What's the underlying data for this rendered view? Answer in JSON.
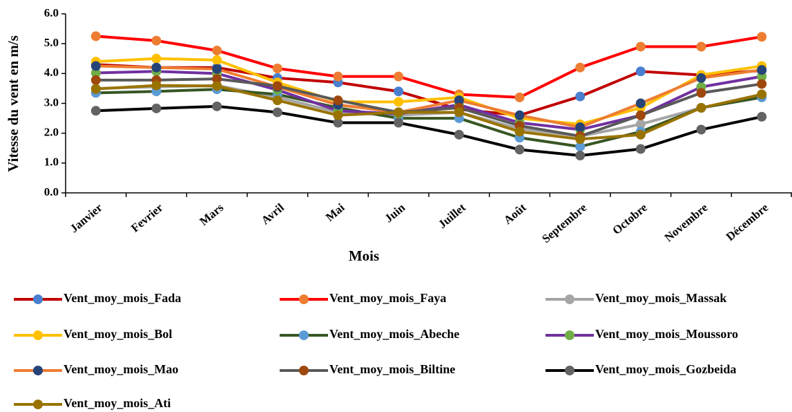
{
  "chart_data": {
    "type": "line",
    "x_label": "Mois",
    "y_label": "Vitesse du vent en m/s",
    "categories": [
      "Janvier",
      "Fevrier",
      "Mars",
      "Avril",
      "Mai",
      "Juin",
      "Juillet",
      "Août",
      "Septembre",
      "Octobre",
      "Novembre",
      "Décembre"
    ],
    "ylim": [
      0,
      6
    ],
    "yticks": [
      {
        "value": 0,
        "label": "0.0"
      },
      {
        "value": 1,
        "label": "1.0"
      },
      {
        "value": 2,
        "label": "2.0"
      },
      {
        "value": 3,
        "label": "3.0"
      },
      {
        "value": 4,
        "label": "4.0"
      },
      {
        "value": 5,
        "label": "5.0"
      },
      {
        "value": 6,
        "label": "6.0"
      }
    ],
    "grid": false,
    "legend": "bottom",
    "series": [
      {
        "name": "Vent_moy_mois_Fada",
        "color": "#c00000",
        "marker_color": "#4a7fd0",
        "values": [
          4.3,
          4.2,
          4.2,
          3.85,
          3.7,
          3.4,
          2.8,
          2.6,
          3.23,
          4.07,
          3.95,
          4.1
        ]
      },
      {
        "name": "Vent_moy_mois_Faya",
        "color": "#ff0000",
        "marker_color": "#ed7d31",
        "values": [
          5.25,
          5.1,
          4.77,
          4.17,
          3.9,
          3.9,
          3.3,
          3.2,
          4.2,
          4.9,
          4.9,
          5.23
        ]
      },
      {
        "name": "Vent_moy_mois_Massak",
        "color": "#a5a5a5",
        "marker_color": "#a5a5a5",
        "values": [
          3.5,
          3.55,
          3.6,
          3.2,
          2.7,
          2.6,
          2.7,
          2.15,
          1.9,
          2.3,
          2.85,
          3.3
        ]
      },
      {
        "name": "Vent_moy_mois_Bol",
        "color": "#ffc000",
        "marker_color": "#ffc000",
        "values": [
          4.4,
          4.5,
          4.45,
          3.7,
          3.05,
          3.05,
          3.2,
          2.5,
          2.3,
          2.85,
          3.95,
          4.25
        ]
      },
      {
        "name": "Vent_moy_mois_Abeche",
        "color": "#375623",
        "marker_color": "#5b9bd5",
        "values": [
          3.35,
          3.4,
          3.47,
          3.3,
          2.85,
          2.5,
          2.5,
          1.85,
          1.55,
          2.05,
          2.85,
          3.2
        ]
      },
      {
        "name": "Vent_moy_mois_Moussoro",
        "color": "#7030a0",
        "marker_color": "#70ad47",
        "values": [
          4.02,
          4.07,
          4.0,
          3.45,
          2.75,
          2.65,
          2.95,
          2.35,
          2.12,
          2.6,
          3.55,
          3.9
        ]
      },
      {
        "name": "Vent_moy_mois_Mao",
        "color": "#ed7d31",
        "marker_color": "#264478",
        "values": [
          4.25,
          4.2,
          4.15,
          3.55,
          2.95,
          2.7,
          3.1,
          2.6,
          2.2,
          3.0,
          3.85,
          4.12
        ]
      },
      {
        "name": "Vent_moy_mois_Biltine",
        "color": "#595959",
        "marker_color": "#9e480e",
        "values": [
          3.78,
          3.78,
          3.82,
          3.58,
          3.1,
          2.7,
          2.85,
          2.25,
          1.9,
          2.6,
          3.35,
          3.65
        ]
      },
      {
        "name": "Vent_moy_mois_Gozbeida",
        "color": "#000000",
        "marker_color": "#636363",
        "values": [
          2.75,
          2.83,
          2.9,
          2.7,
          2.35,
          2.35,
          1.95,
          1.45,
          1.25,
          1.47,
          2.12,
          2.55
        ]
      },
      {
        "name": "Vent_moy_mois_Ati",
        "color": "#997300",
        "marker_color": "#997300",
        "values": [
          3.48,
          3.6,
          3.58,
          3.1,
          2.6,
          2.7,
          2.7,
          2.05,
          1.8,
          1.95,
          2.85,
          3.3
        ]
      }
    ]
  }
}
